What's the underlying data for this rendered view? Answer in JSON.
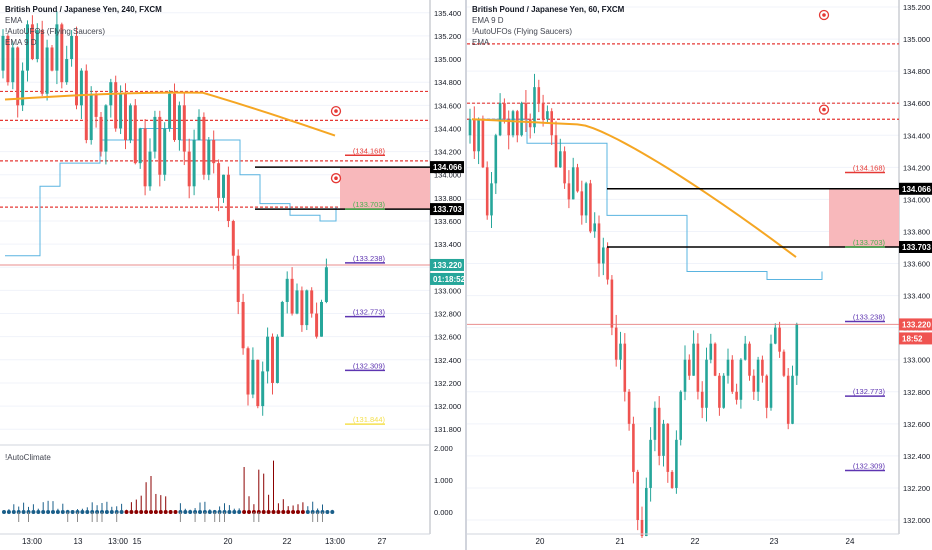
{
  "left": {
    "title": "British Pound / Japanese Yen, 240, FXCM",
    "indicators": [
      "EMA",
      "!AutoUFOs (Flying Saucers)",
      "EMA 9 D"
    ],
    "oscillator_title": "!AutoClimate",
    "price_axis": [
      "135.400",
      "135.200",
      "135.000",
      "134.800",
      "134.600",
      "134.400",
      "134.200",
      "134.000",
      "133.800",
      "133.600",
      "133.400",
      "133.200",
      "133.000",
      "132.800",
      "132.600",
      "132.400",
      "132.200",
      "132.000",
      "131.800"
    ],
    "osc_axis": [
      "2.000",
      "1.000",
      "0.000"
    ],
    "time_axis": [
      "13:00",
      "13",
      "13:00",
      "15",
      "20",
      "22",
      "13:00",
      "27"
    ],
    "level_labels": [
      "(134.168)",
      "(133.703)",
      "(133.238)",
      "(132.773)",
      "(132.309)",
      "(131.844)"
    ],
    "badges": {
      "upper": "134.066",
      "lower": "133.703",
      "price": "133.220",
      "timer": "01:18:52"
    }
  },
  "right": {
    "title": "British Pound / Japanese Yen, 60, FXCM",
    "indicators": [
      "EMA 9 D",
      "!AutoUFOs (Flying Saucers)",
      "EMA"
    ],
    "price_axis": [
      "135.200",
      "135.000",
      "134.800",
      "134.600",
      "134.400",
      "134.200",
      "134.000",
      "133.800",
      "133.600",
      "133.400",
      "133.200",
      "133.000",
      "132.800",
      "132.600",
      "132.400",
      "132.200",
      "132.000"
    ],
    "time_axis": [
      "20",
      "21",
      "22",
      "23",
      "24"
    ],
    "level_labels": [
      "(134.168)",
      "(133.703)",
      "(133.238)",
      "(132.773)",
      "(132.309)"
    ],
    "badges": {
      "upper": "134.066",
      "lower": "133.703",
      "price": "133.220",
      "timer": "18:52"
    }
  },
  "colors": {
    "bull": "#26a69a",
    "bear": "#ef5350",
    "ema": "#f5a623",
    "ema9": "#5ab4e0",
    "dash": "#e53935",
    "zone": "#f8b8bb",
    "purple": "#5e35b1",
    "yellow": "#f5e050",
    "green_level": "#4caf50",
    "red_level": "#e53935",
    "price_line": "#e57373"
  }
}
